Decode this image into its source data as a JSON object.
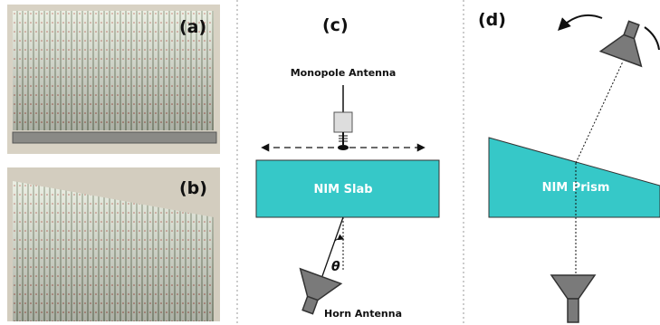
{
  "labels": {
    "a": "(a)",
    "b": "(b)",
    "c": "(c)",
    "d": "(d)"
  },
  "panel_c": {
    "monopole": "Monopole Antenna",
    "slab": "NIM Slab",
    "angle": "θ",
    "horn": "Horn Antenna"
  },
  "panel_d": {
    "prism": "NIM Prism"
  }
}
